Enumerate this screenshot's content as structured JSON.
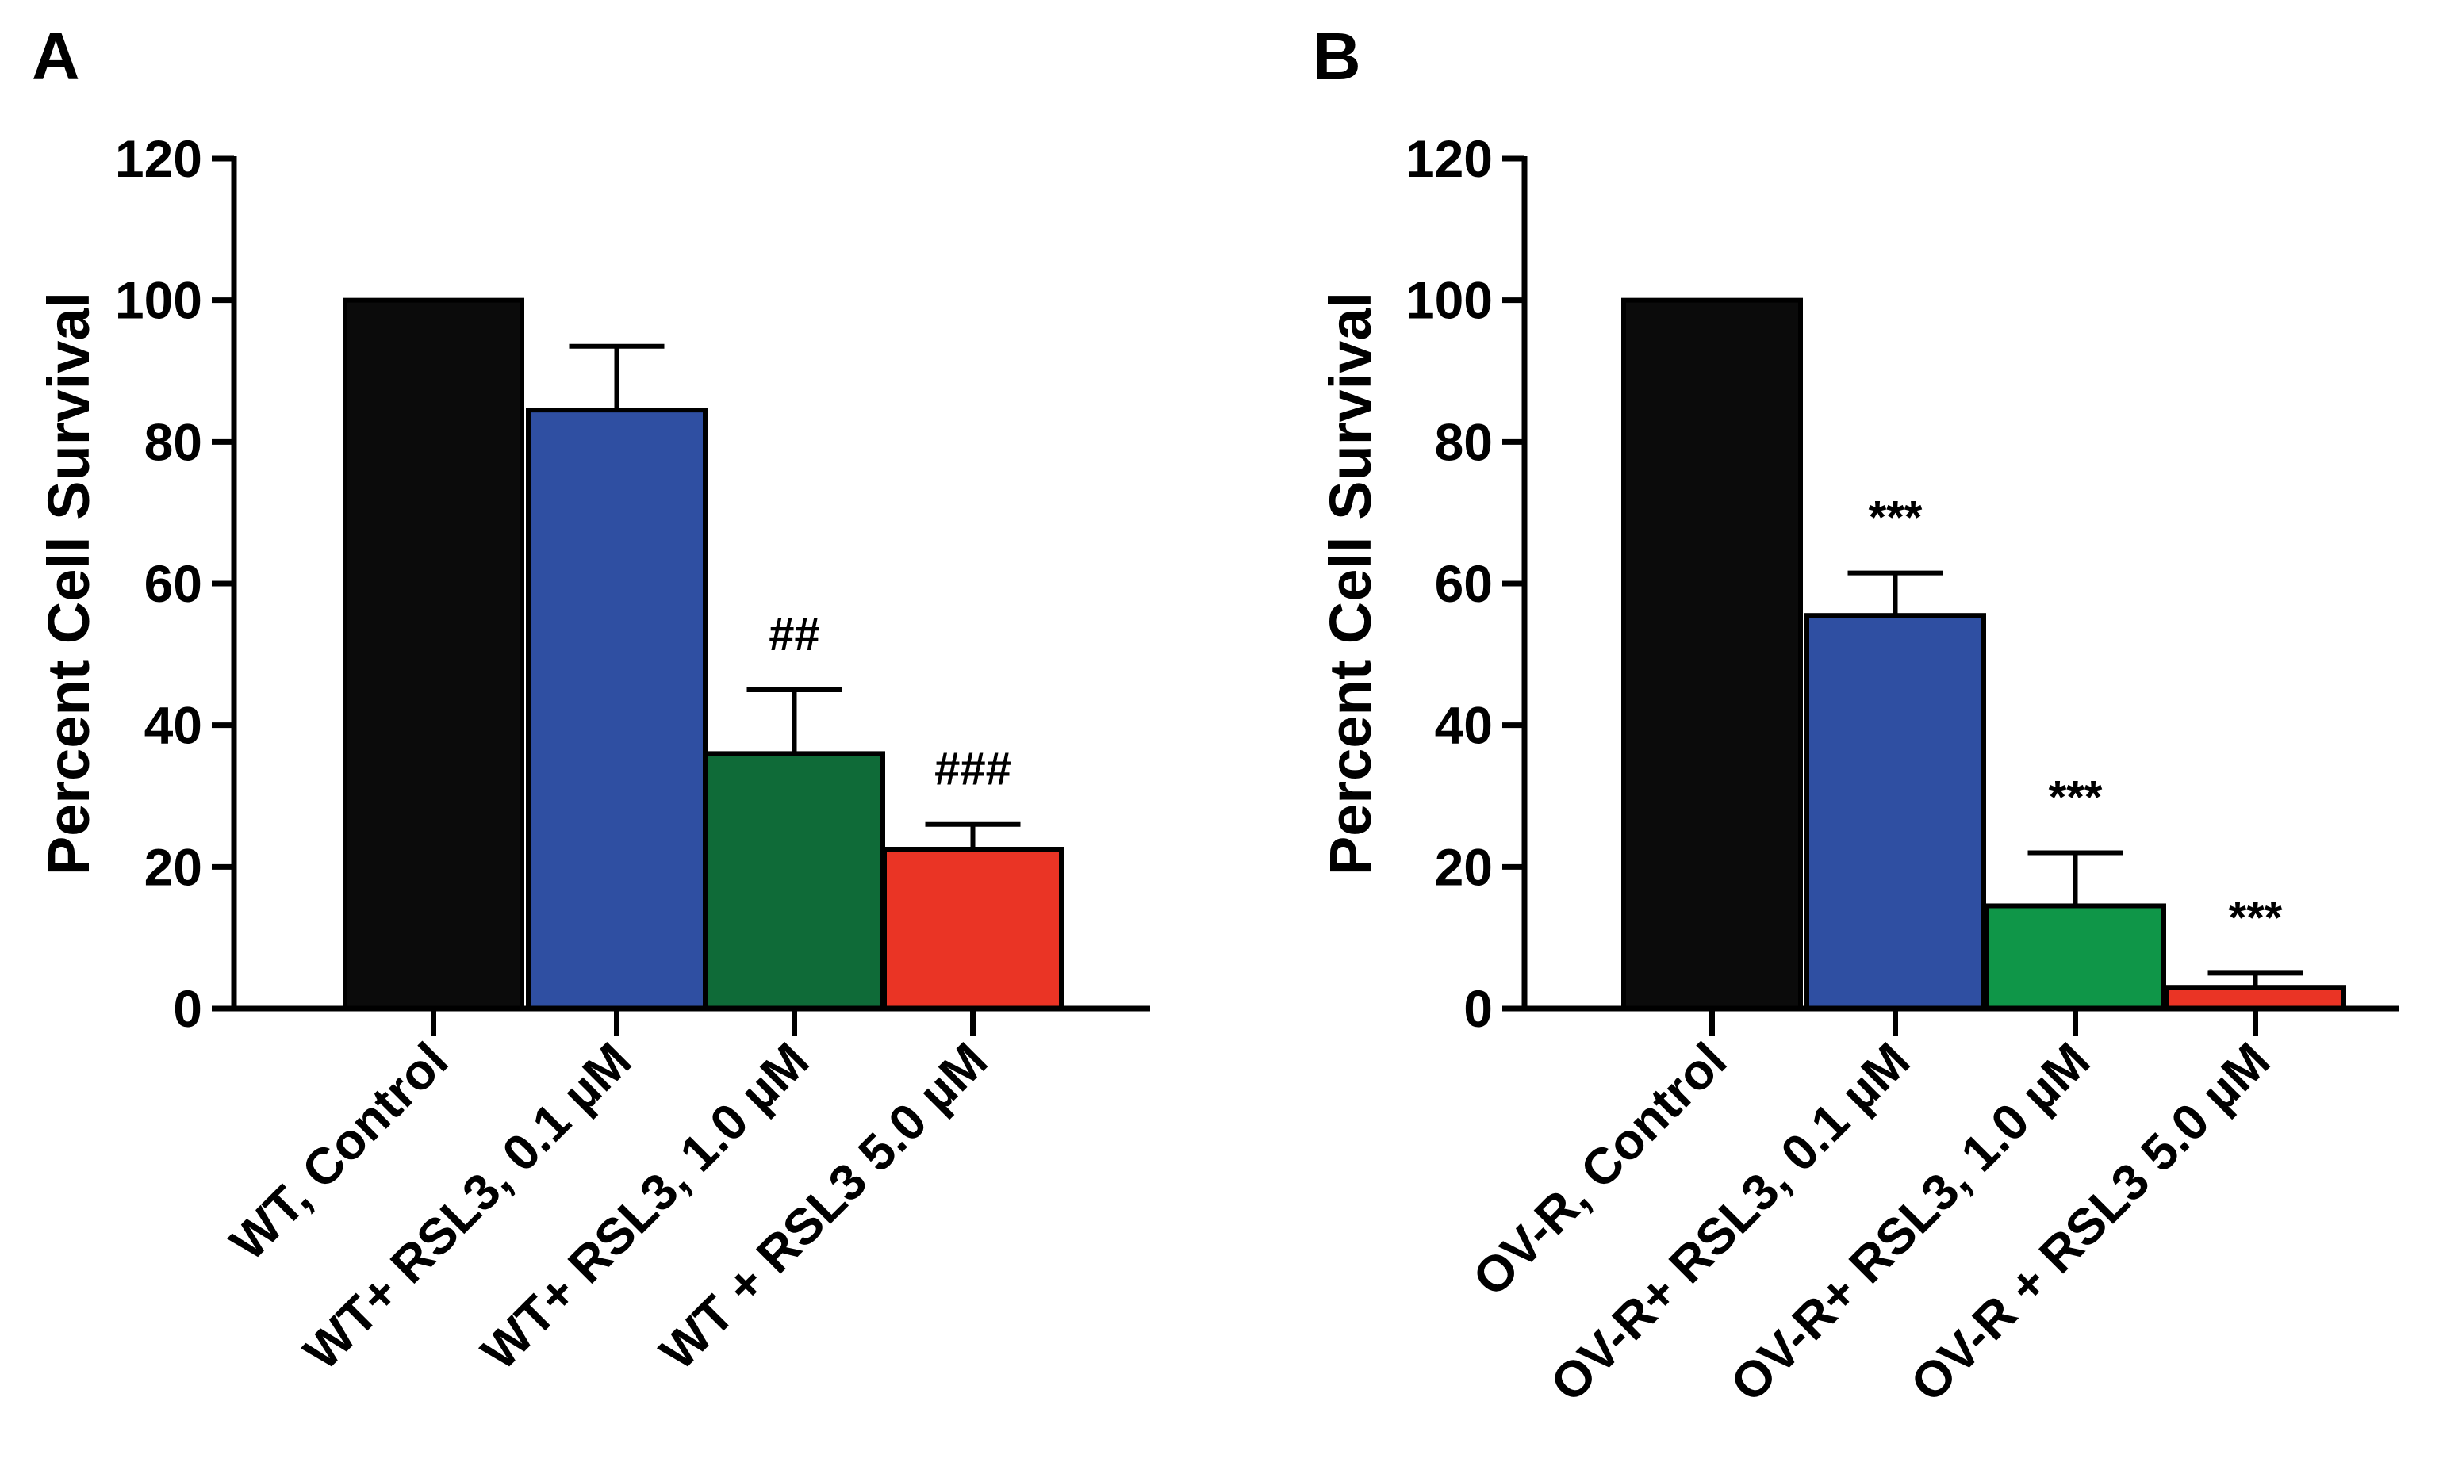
{
  "chart_data": [
    {
      "panel": "A",
      "type": "bar",
      "ylabel": "Percent Cell Survival",
      "xlabel": "",
      "ylim": [
        0,
        120
      ],
      "yticks": [
        0,
        20,
        40,
        60,
        80,
        100,
        120
      ],
      "categories": [
        "WT, Control",
        "WT+ RSL3, 0.1 µM",
        "WT+ RSL3, 1.0 µM",
        "WT + RSL3 5.0 µM"
      ],
      "values": [
        100,
        84.5,
        36,
        22.5
      ],
      "errors": [
        0,
        9,
        9,
        3.5
      ],
      "annotations": [
        "",
        "",
        "##",
        "###"
      ],
      "colors": [
        "#0b0b0b",
        "#2f4fa2",
        "#0f6b38",
        "#ea3425"
      ]
    },
    {
      "panel": "B",
      "type": "bar",
      "ylabel": "Percent Cell Survival",
      "xlabel": "",
      "ylim": [
        0,
        120
      ],
      "yticks": [
        0,
        20,
        40,
        60,
        80,
        100,
        120
      ],
      "categories": [
        "OV-R, Control",
        "OV-R+ RSL3, 0.1 µM",
        "OV-R+ RSL3, 1.0 µM",
        "OV-R + RSL3 5.0 µM"
      ],
      "values": [
        100,
        55.5,
        14.5,
        3
      ],
      "errors": [
        0,
        6,
        7.5,
        2
      ],
      "annotations": [
        "",
        "***",
        "***",
        "***"
      ],
      "colors": [
        "#0b0b0b",
        "#2f4fa2",
        "#0f9648",
        "#ea3425"
      ]
    }
  ]
}
